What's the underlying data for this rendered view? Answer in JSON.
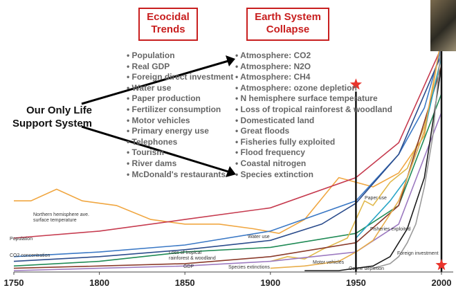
{
  "headers": {
    "left": "Ecocidal\nTrends",
    "right": "Earth System\nCollapse"
  },
  "trends": [
    "Population",
    "Real GDP",
    "Foreign direct investment",
    "Water use",
    "Paper production",
    "Fertilizer consumption",
    "Motor vehicles",
    "Primary energy use",
    "Telephones",
    "Tourism",
    "River dams",
    "McDonald's restaurants"
  ],
  "collapse": [
    "Atmosphere: CO2",
    "Atmosphere: N2O",
    "Atmosphere: CH4",
    "Atmosphere: ozone depletion",
    "N hemisphere surface temperature",
    "Loss of tropical rainforest & woodland",
    "Domesticated land",
    "Great floods",
    "Fisheries fully exploited",
    "Flood frequency",
    "Coastal nitrogen",
    "Species extinction"
  ],
  "callout": "Our Only Life\nSupport System",
  "chart_data": {
    "type": "line",
    "xlim": [
      1750,
      2000
    ],
    "ylim": [
      0,
      100
    ],
    "xticks": [
      1750,
      1800,
      1850,
      1900,
      1950,
      2000
    ],
    "markers": [
      {
        "x": 1950,
        "y": 80,
        "color": "#e8342c"
      },
      {
        "x": 2000,
        "y": 5,
        "color": "#e8342c"
      }
    ],
    "series": [
      {
        "name": "Northern hemisphere ave. surface temperature",
        "color": "#f0a640",
        "x": [
          1750,
          1760,
          1775,
          1790,
          1810,
          1830,
          1850,
          1870,
          1890,
          1905,
          1920,
          1940,
          1960,
          1975,
          1990,
          2000
        ],
        "y": [
          30,
          30,
          35,
          30,
          28,
          22,
          20,
          20,
          18,
          16,
          22,
          40,
          36,
          42,
          58,
          100
        ]
      },
      {
        "name": "Population",
        "color": "#c63b4f",
        "x": [
          1750,
          1800,
          1850,
          1900,
          1950,
          1975,
          2000
        ],
        "y": [
          14,
          17,
          22,
          27,
          40,
          55,
          96
        ]
      },
      {
        "name": "CO2 concentration",
        "color": "#3a78c5",
        "x": [
          1750,
          1800,
          1850,
          1900,
          1950,
          1975,
          1990,
          2000
        ],
        "y": [
          6,
          8,
          11,
          17,
          30,
          50,
          70,
          96
        ]
      },
      {
        "name": "Water use",
        "color": "#2b4c8c",
        "x": [
          1750,
          1800,
          1850,
          1900,
          1930,
          1950,
          1975,
          2000
        ],
        "y": [
          4,
          6,
          9,
          13,
          20,
          29,
          50,
          93
        ]
      },
      {
        "name": "Loss of tropical rainforest & woodland",
        "color": "#1f8a55",
        "x": [
          1750,
          1800,
          1850,
          1900,
          1950,
          1975,
          2000
        ],
        "y": [
          2,
          4,
          8,
          10,
          16,
          28,
          76
        ]
      },
      {
        "name": "Paper use",
        "color": "#e0b84a",
        "x": [
          1900,
          1910,
          1920,
          1930,
          1945,
          1950,
          1955,
          1960,
          1970,
          1980,
          1990,
          2000
        ],
        "y": [
          4,
          6,
          5,
          9,
          14,
          22,
          30,
          28,
          38,
          44,
          62,
          92
        ]
      },
      {
        "name": "GDP",
        "color": "#8a3a2a",
        "x": [
          1750,
          1800,
          1850,
          1900,
          1950,
          1975,
          2000
        ],
        "y": [
          1,
          2,
          3,
          6,
          12,
          28,
          88
        ]
      },
      {
        "name": "Species extinctions",
        "color": "#9c7ac0",
        "x": [
          1750,
          1800,
          1850,
          1900,
          1950,
          1975,
          2000
        ],
        "y": [
          0,
          1,
          2,
          4,
          8,
          20,
          68
        ]
      },
      {
        "name": "Fisheries exploited",
        "color": "#2aa6c7",
        "x": [
          1950,
          1960,
          1970,
          1980,
          1990,
          2000
        ],
        "y": [
          14,
          22,
          30,
          40,
          60,
          92
        ]
      },
      {
        "name": "Motor vehicles",
        "color": "#e8ad4a",
        "x": [
          1900,
          1920,
          1940,
          1950,
          1960,
          1975,
          1990,
          2000
        ],
        "y": [
          1,
          2,
          4,
          8,
          13,
          30,
          60,
          100
        ]
      },
      {
        "name": "Ozone depletion",
        "color": "#1a1a1a",
        "x": [
          1920,
          1940,
          1950,
          1960,
          1970,
          1980,
          1990,
          2000
        ],
        "y": [
          0,
          0,
          1,
          2,
          6,
          18,
          40,
          88
        ]
      },
      {
        "name": "Foreign investment",
        "color": "#9a9a9a",
        "x": [
          1960,
          1970,
          1975,
          1980,
          1985,
          1990,
          1995,
          2000
        ],
        "y": [
          1,
          3,
          6,
          12,
          20,
          36,
          58,
          98
        ]
      }
    ]
  }
}
